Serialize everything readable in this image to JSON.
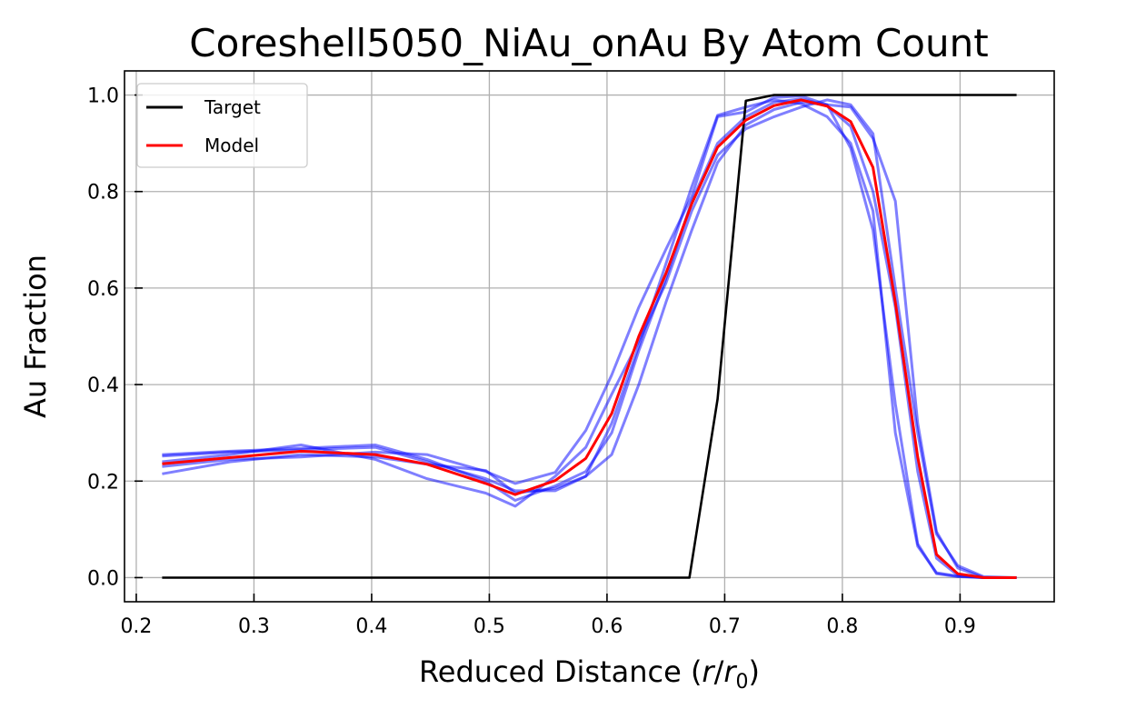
{
  "chart_data": {
    "type": "line",
    "title": "Coreshell5050_NiAu_onAu By Atom Count",
    "xlabel_prefix": "Reduced Distance (",
    "xlabel_r": "r",
    "xlabel_slash": "/",
    "xlabel_r0": "r",
    "xlabel_sub": "0",
    "xlabel_suffix": ")",
    "ylabel": "Au Fraction",
    "xlim": [
      0.19,
      0.98
    ],
    "ylim": [
      -0.05,
      1.05
    ],
    "xticks": [
      "0.2",
      "0.3",
      "0.4",
      "0.5",
      "0.6",
      "0.7",
      "0.8",
      "0.9"
    ],
    "yticks": [
      "0.0",
      "0.2",
      "0.4",
      "0.6",
      "0.8",
      "1.0"
    ],
    "grid": true,
    "legend_position": "top-left",
    "legend": [
      {
        "label": "Target",
        "color": "#000000"
      },
      {
        "label": "Model",
        "color": "#ff0000"
      }
    ],
    "series": [
      {
        "name": "Target",
        "color": "#000000",
        "opacity": 1,
        "width": 2.6,
        "points": [
          [
            0.222,
            0.0
          ],
          [
            0.67,
            0.0
          ],
          [
            0.694,
            0.37
          ],
          [
            0.718,
            0.988
          ],
          [
            0.742,
            1.0
          ],
          [
            0.948,
            1.0
          ]
        ]
      },
      {
        "name": "Model",
        "color": "#ff0000",
        "opacity": 1,
        "width": 3,
        "points": [
          [
            0.222,
            0.236
          ],
          [
            0.34,
            0.262
          ],
          [
            0.403,
            0.255
          ],
          [
            0.447,
            0.235
          ],
          [
            0.497,
            0.195
          ],
          [
            0.522,
            0.172
          ],
          [
            0.556,
            0.201
          ],
          [
            0.582,
            0.247
          ],
          [
            0.604,
            0.34
          ],
          [
            0.627,
            0.5
          ],
          [
            0.65,
            0.63
          ],
          [
            0.672,
            0.775
          ],
          [
            0.694,
            0.892
          ],
          [
            0.718,
            0.948
          ],
          [
            0.742,
            0.978
          ],
          [
            0.765,
            0.99
          ],
          [
            0.787,
            0.977
          ],
          [
            0.807,
            0.945
          ],
          [
            0.826,
            0.85
          ],
          [
            0.845,
            0.57
          ],
          [
            0.864,
            0.25
          ],
          [
            0.88,
            0.048
          ],
          [
            0.898,
            0.008
          ],
          [
            0.92,
            0.0
          ],
          [
            0.948,
            0.0
          ]
        ]
      },
      {
        "color": "#0000ff",
        "opacity": 0.5,
        "width": 3,
        "points": [
          [
            0.222,
            0.255
          ],
          [
            0.28,
            0.262
          ],
          [
            0.34,
            0.268
          ],
          [
            0.403,
            0.275
          ],
          [
            0.447,
            0.245
          ],
          [
            0.497,
            0.2
          ],
          [
            0.522,
            0.16
          ],
          [
            0.556,
            0.19
          ],
          [
            0.582,
            0.22
          ],
          [
            0.604,
            0.3
          ],
          [
            0.627,
            0.47
          ],
          [
            0.65,
            0.62
          ],
          [
            0.672,
            0.78
          ],
          [
            0.694,
            0.9
          ],
          [
            0.718,
            0.955
          ],
          [
            0.742,
            0.985
          ],
          [
            0.765,
            0.992
          ],
          [
            0.787,
            0.978
          ],
          [
            0.807,
            0.935
          ],
          [
            0.826,
            0.8
          ],
          [
            0.845,
            0.56
          ],
          [
            0.864,
            0.22
          ],
          [
            0.88,
            0.04
          ],
          [
            0.898,
            0.005
          ],
          [
            0.92,
            0.0
          ],
          [
            0.948,
            0.0
          ]
        ]
      },
      {
        "color": "#0000ff",
        "opacity": 0.5,
        "width": 3,
        "points": [
          [
            0.222,
            0.215
          ],
          [
            0.28,
            0.24
          ],
          [
            0.34,
            0.255
          ],
          [
            0.403,
            0.25
          ],
          [
            0.447,
            0.235
          ],
          [
            0.497,
            0.222
          ],
          [
            0.522,
            0.175
          ],
          [
            0.556,
            0.185
          ],
          [
            0.582,
            0.21
          ],
          [
            0.604,
            0.255
          ],
          [
            0.627,
            0.4
          ],
          [
            0.65,
            0.57
          ],
          [
            0.672,
            0.72
          ],
          [
            0.694,
            0.86
          ],
          [
            0.718,
            0.938
          ],
          [
            0.742,
            0.97
          ],
          [
            0.765,
            0.985
          ],
          [
            0.787,
            0.98
          ],
          [
            0.807,
            0.975
          ],
          [
            0.826,
            0.91
          ],
          [
            0.845,
            0.78
          ],
          [
            0.864,
            0.32
          ],
          [
            0.88,
            0.095
          ],
          [
            0.898,
            0.02
          ],
          [
            0.92,
            0.0
          ],
          [
            0.948,
            0.0
          ]
        ]
      },
      {
        "color": "#0000ff",
        "opacity": 0.5,
        "width": 3,
        "points": [
          [
            0.222,
            0.23
          ],
          [
            0.28,
            0.245
          ],
          [
            0.34,
            0.25
          ],
          [
            0.403,
            0.26
          ],
          [
            0.447,
            0.255
          ],
          [
            0.497,
            0.22
          ],
          [
            0.522,
            0.195
          ],
          [
            0.556,
            0.218
          ],
          [
            0.582,
            0.305
          ],
          [
            0.604,
            0.42
          ],
          [
            0.627,
            0.56
          ],
          [
            0.65,
            0.68
          ],
          [
            0.672,
            0.79
          ],
          [
            0.694,
            0.955
          ],
          [
            0.718,
            0.965
          ],
          [
            0.742,
            0.995
          ],
          [
            0.765,
            0.998
          ],
          [
            0.787,
            0.98
          ],
          [
            0.807,
            0.89
          ],
          [
            0.826,
            0.72
          ],
          [
            0.845,
            0.36
          ],
          [
            0.864,
            0.07
          ],
          [
            0.88,
            0.008
          ],
          [
            0.898,
            0.002
          ],
          [
            0.92,
            0.0
          ],
          [
            0.948,
            0.0
          ]
        ]
      },
      {
        "color": "#0000ff",
        "opacity": 0.5,
        "width": 3,
        "points": [
          [
            0.222,
            0.24
          ],
          [
            0.28,
            0.255
          ],
          [
            0.34,
            0.275
          ],
          [
            0.403,
            0.245
          ],
          [
            0.447,
            0.205
          ],
          [
            0.497,
            0.175
          ],
          [
            0.522,
            0.148
          ],
          [
            0.556,
            0.21
          ],
          [
            0.582,
            0.27
          ],
          [
            0.604,
            0.38
          ],
          [
            0.627,
            0.49
          ],
          [
            0.65,
            0.61
          ],
          [
            0.672,
            0.76
          ],
          [
            0.694,
            0.875
          ],
          [
            0.718,
            0.93
          ],
          [
            0.742,
            0.955
          ],
          [
            0.765,
            0.975
          ],
          [
            0.787,
            0.99
          ],
          [
            0.807,
            0.98
          ],
          [
            0.826,
            0.92
          ],
          [
            0.845,
            0.6
          ],
          [
            0.864,
            0.3
          ],
          [
            0.88,
            0.09
          ],
          [
            0.898,
            0.025
          ],
          [
            0.92,
            0.002
          ],
          [
            0.948,
            0.0
          ]
        ]
      },
      {
        "color": "#0000ff",
        "opacity": 0.5,
        "width": 3,
        "points": [
          [
            0.222,
            0.252
          ],
          [
            0.28,
            0.26
          ],
          [
            0.34,
            0.265
          ],
          [
            0.403,
            0.27
          ],
          [
            0.447,
            0.24
          ],
          [
            0.497,
            0.205
          ],
          [
            0.522,
            0.18
          ],
          [
            0.556,
            0.18
          ],
          [
            0.582,
            0.21
          ],
          [
            0.604,
            0.32
          ],
          [
            0.627,
            0.48
          ],
          [
            0.65,
            0.65
          ],
          [
            0.672,
            0.81
          ],
          [
            0.694,
            0.958
          ],
          [
            0.718,
            0.975
          ],
          [
            0.742,
            0.99
          ],
          [
            0.765,
            0.982
          ],
          [
            0.787,
            0.955
          ],
          [
            0.807,
            0.9
          ],
          [
            0.826,
            0.76
          ],
          [
            0.845,
            0.3
          ],
          [
            0.864,
            0.065
          ],
          [
            0.88,
            0.01
          ],
          [
            0.898,
            0.003
          ],
          [
            0.92,
            0.0
          ],
          [
            0.948,
            0.0
          ]
        ]
      }
    ]
  }
}
